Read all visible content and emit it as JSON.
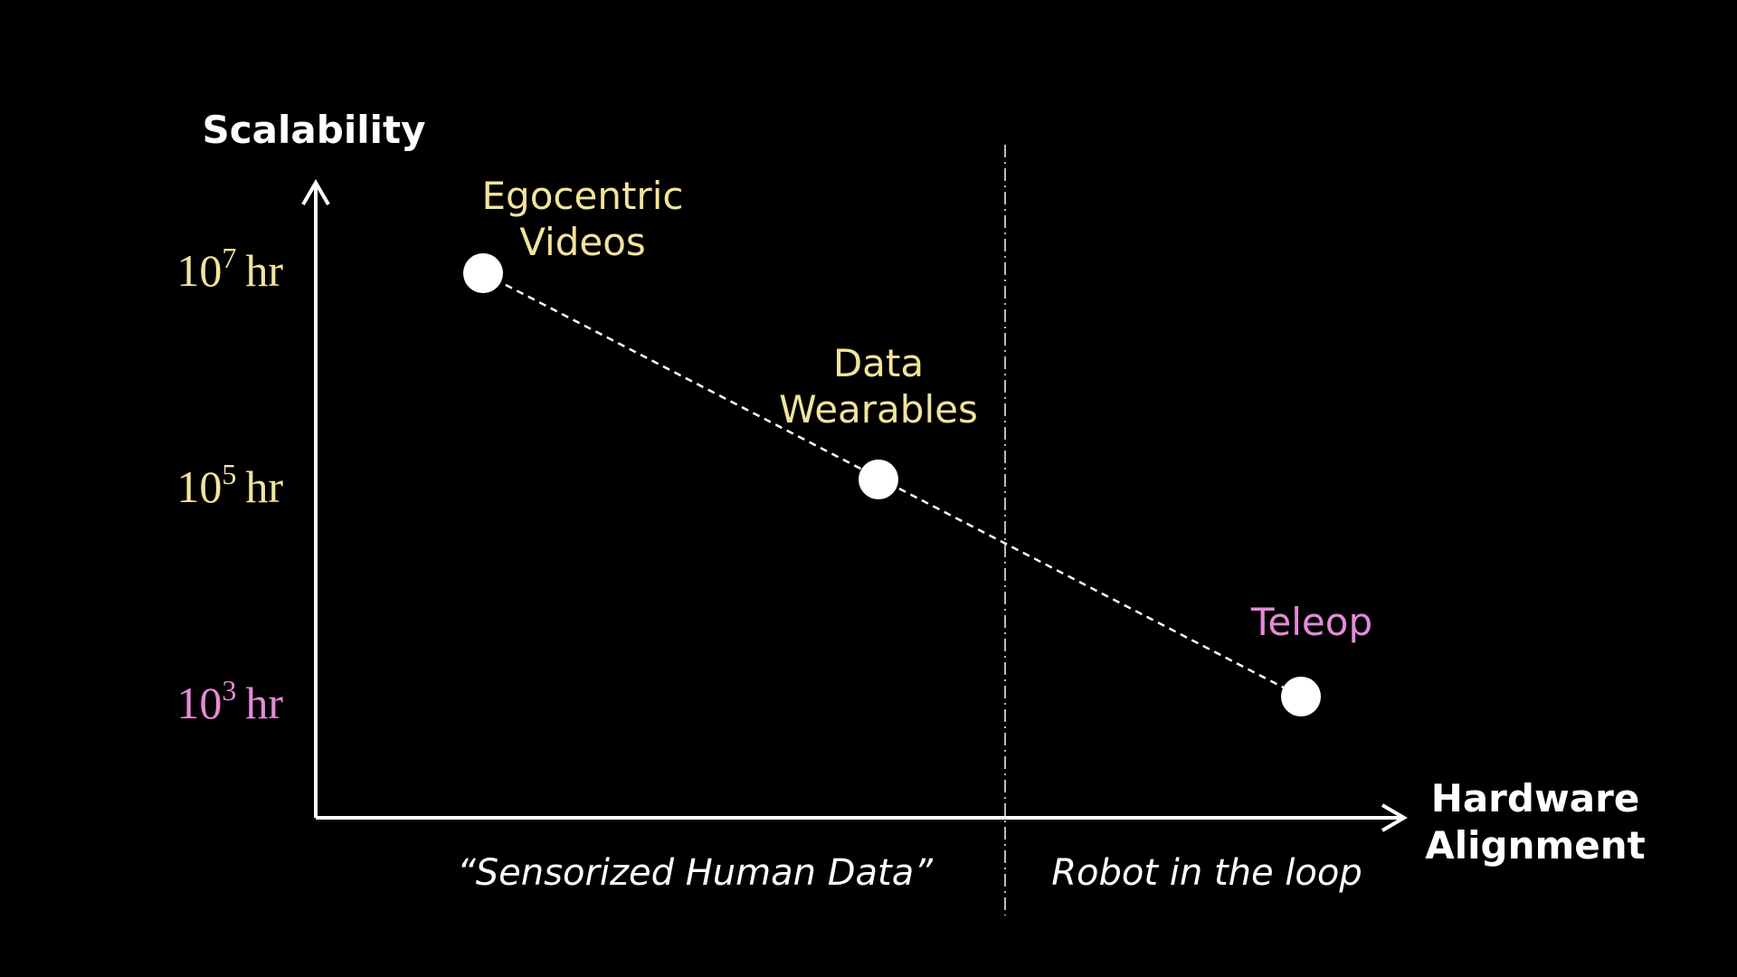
{
  "y_axis": {
    "title": "Scalability",
    "ticks": [
      {
        "base": "10",
        "exponent": "7",
        "unit": "hr"
      },
      {
        "base": "10",
        "exponent": "5",
        "unit": "hr"
      },
      {
        "base": "10",
        "exponent": "3",
        "unit": "hr"
      }
    ]
  },
  "x_axis": {
    "title": [
      "Hardware",
      "Alignment"
    ]
  },
  "regions": [
    "“Sensorized Human Data”",
    "Robot in the loop"
  ],
  "nodes": [
    {
      "label": [
        "Egocentric",
        "Videos"
      ]
    },
    {
      "label": [
        "Data",
        "Wearables"
      ]
    },
    {
      "label": [
        "Teleop"
      ]
    }
  ]
}
